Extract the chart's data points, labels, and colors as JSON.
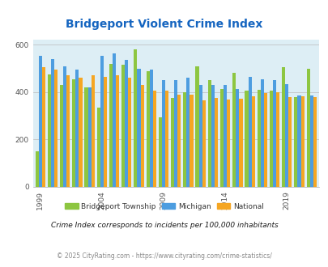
{
  "title": "Bridgeport Violent Crime Index",
  "title_color": "#1565c0",
  "years": [
    1999,
    2000,
    2001,
    2002,
    2003,
    2004,
    2005,
    2006,
    2007,
    2008,
    2009,
    2010,
    2011,
    2012,
    2013,
    2014,
    2015,
    2016,
    2017,
    2018,
    2019,
    2020,
    2021
  ],
  "bridgeport": [
    150,
    475,
    430,
    455,
    420,
    335,
    520,
    515,
    580,
    490,
    295,
    375,
    400,
    510,
    450,
    415,
    480,
    405,
    410,
    405,
    505,
    380,
    500
  ],
  "michigan": [
    555,
    540,
    510,
    495,
    420,
    555,
    565,
    535,
    500,
    495,
    450,
    450,
    460,
    430,
    430,
    430,
    415,
    465,
    455,
    450,
    435,
    385,
    385
  ],
  "national": [
    505,
    495,
    470,
    460,
    470,
    465,
    470,
    460,
    430,
    405,
    405,
    390,
    390,
    365,
    375,
    370,
    373,
    383,
    395,
    399,
    379,
    381,
    380
  ],
  "color_bridgeport": "#8dc641",
  "color_michigan": "#4d9de0",
  "color_national": "#f5a623",
  "bg_color": "#ddeef5",
  "fig_bg": "#ffffff",
  "ylim": [
    0,
    620
  ],
  "yticks": [
    0,
    200,
    400,
    600
  ],
  "bar_width": 0.27,
  "label_years": [
    1999,
    2004,
    2009,
    2014,
    2019
  ],
  "legend_labels": [
    "Bridgeport Township",
    "Michigan",
    "National"
  ],
  "footnote1": "Crime Index corresponds to incidents per 100,000 inhabitants",
  "footnote2": "© 2025 CityRating.com - https://www.cityrating.com/crime-statistics/"
}
